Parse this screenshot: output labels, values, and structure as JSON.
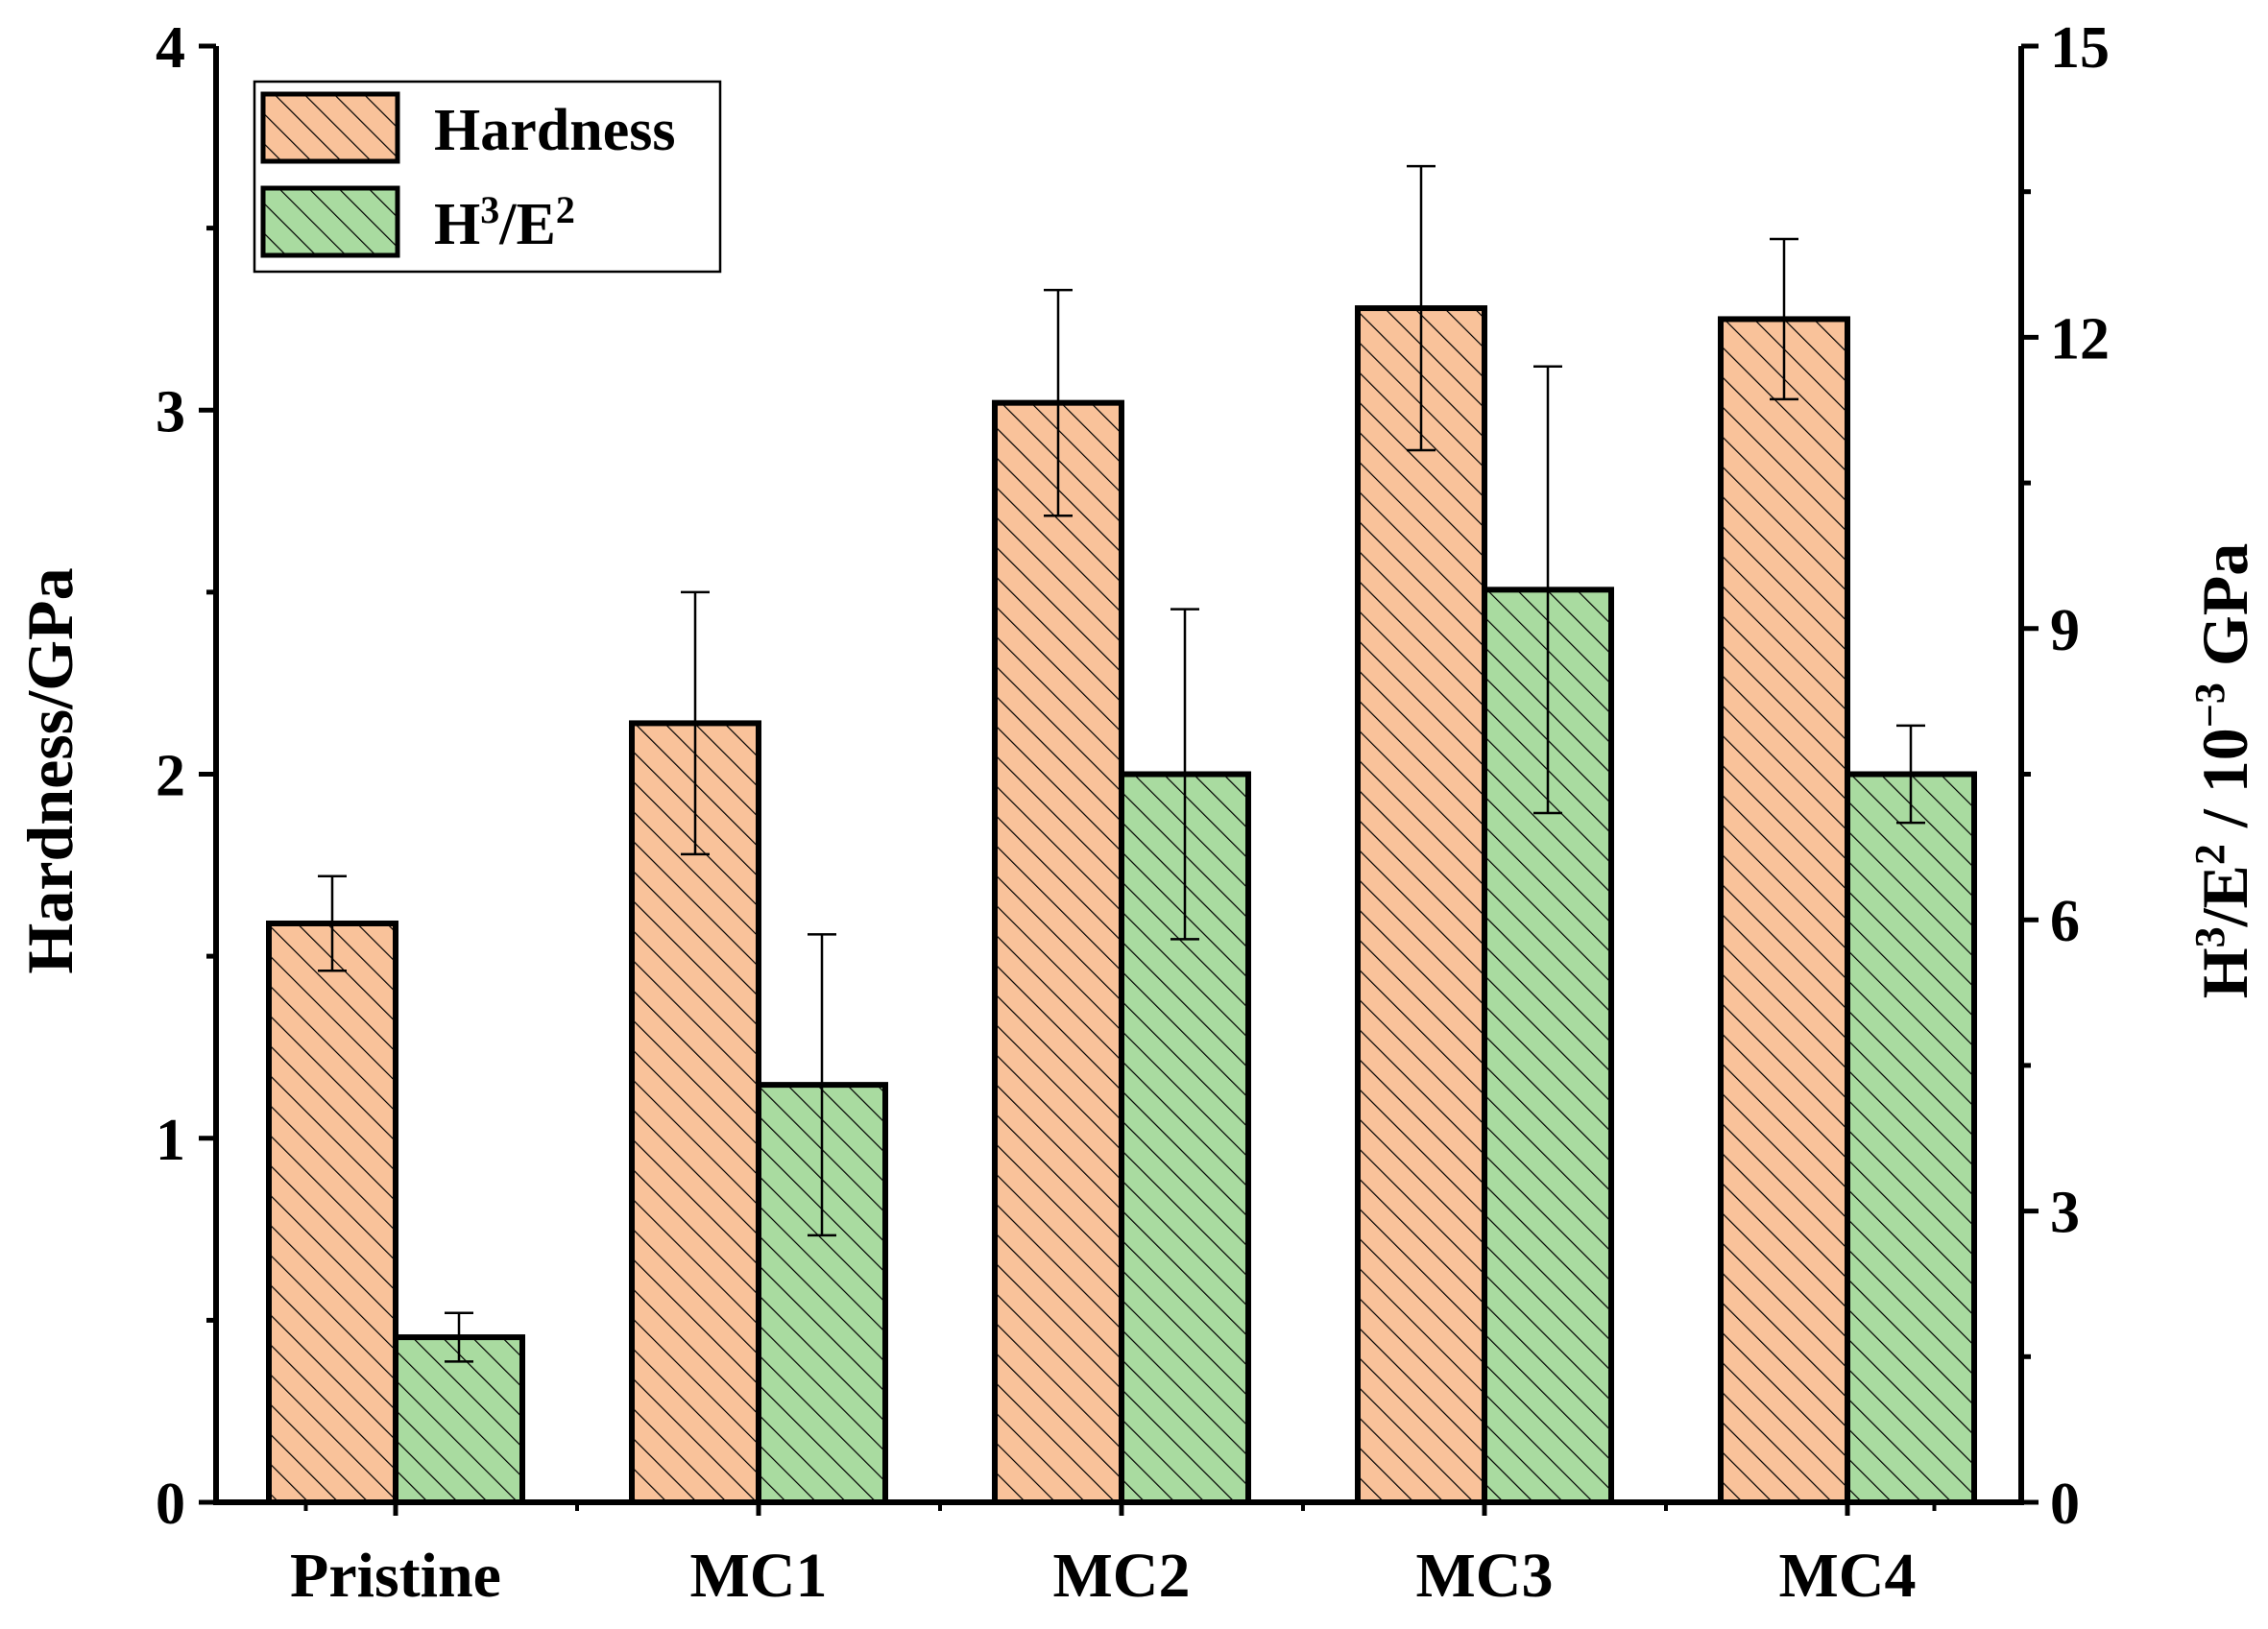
{
  "chart_data": {
    "type": "bar",
    "categories": [
      "Pristine",
      "MC1",
      "MC2",
      "MC3",
      "MC4"
    ],
    "series": [
      {
        "name": "Hardness",
        "axis": "left",
        "values": [
          1.59,
          2.14,
          3.02,
          3.28,
          3.25
        ],
        "errors": [
          0.13,
          0.36,
          0.31,
          0.39,
          0.22
        ],
        "color": "#f9c29a",
        "hatch": "#000000"
      },
      {
        "name": "H3/E2",
        "axis": "right",
        "values": [
          1.7,
          4.3,
          7.5,
          9.4,
          7.5
        ],
        "errors": [
          0.25,
          1.55,
          1.7,
          2.3,
          0.5
        ],
        "color": "#a9dba0",
        "hatch": "#000000"
      }
    ],
    "ylim": [
      0,
      4
    ],
    "y2lim": [
      0,
      15
    ],
    "yticks": [
      "0",
      "1",
      "2",
      "3",
      "4"
    ],
    "y2ticks": [
      "0",
      "3",
      "6",
      "9",
      "12",
      "15"
    ],
    "ylabel": "Hardness/GPa",
    "y2label": {
      "base1": "H",
      "sup1": "3",
      "mid": "/E",
      "sup2": "2",
      "mid2": " / 10",
      "sup3": "−3",
      "unit": " GPa"
    },
    "legend": {
      "position": "top-left",
      "items": [
        {
          "label": "Hardness",
          "base": "Hardness",
          "sup1": "",
          "mid": "",
          "sup2": ""
        },
        {
          "label": "H3/E2",
          "base": "H",
          "sup1": "3",
          "mid": "/E",
          "sup2": "2"
        }
      ]
    }
  }
}
